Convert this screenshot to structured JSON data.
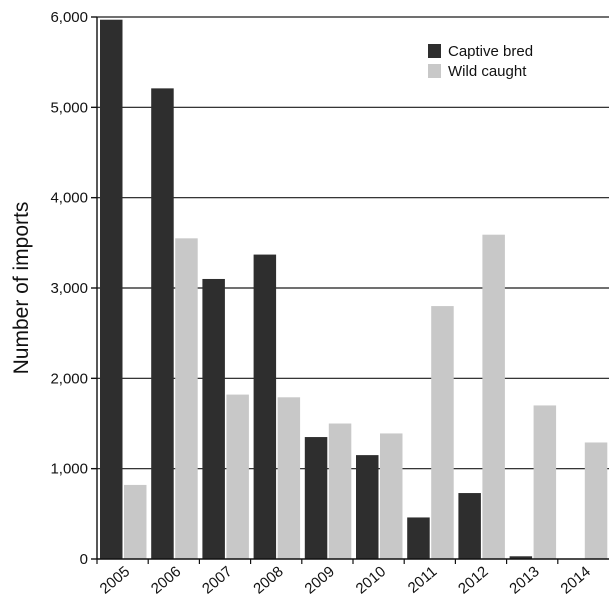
{
  "chart_data": {
    "type": "bar",
    "title": "",
    "xlabel": "",
    "ylabel": "Number  of  imports",
    "categories": [
      "2005",
      "2006",
      "2007",
      "2008",
      "2009",
      "2010",
      "2011",
      "2012",
      "2013",
      "2014"
    ],
    "series": [
      {
        "name": "Captive bred",
        "color": "#2e2e2e",
        "values": [
          5970,
          5210,
          3100,
          3370,
          1350,
          1150,
          460,
          730,
          30,
          0
        ]
      },
      {
        "name": "Wild caught",
        "color": "#c8c8c8",
        "values": [
          820,
          3550,
          1820,
          1790,
          1500,
          1390,
          2800,
          3590,
          1700,
          1290
        ]
      }
    ],
    "ylim": [
      0,
      6000
    ],
    "yticks": [
      0,
      1000,
      2000,
      3000,
      4000,
      5000,
      6000
    ],
    "ytick_labels": [
      "0",
      "1,000",
      "2,000",
      "3,000",
      "4,000",
      "5,000",
      "6,000"
    ],
    "grid": true,
    "legend_position": "top-right"
  }
}
